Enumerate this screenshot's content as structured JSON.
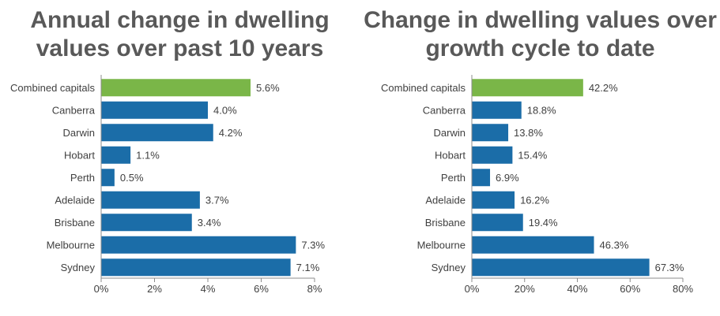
{
  "colors": {
    "combined": "#7ab648",
    "city": "#1b6da8",
    "axis": "#8c8c8c",
    "title": "#595959",
    "text": "#404040"
  },
  "chart_data": [
    {
      "type": "bar",
      "orientation": "horizontal",
      "title_lines": [
        "Annual change in dwelling",
        "values over past 10 years"
      ],
      "categories": [
        "Combined capitals",
        "Canberra",
        "Darwin",
        "Hobart",
        "Perth",
        "Adelaide",
        "Brisbane",
        "Melbourne",
        "Sydney"
      ],
      "values": [
        5.6,
        4.0,
        4.2,
        1.1,
        0.5,
        3.7,
        3.4,
        7.3,
        7.1
      ],
      "value_labels": [
        "5.6%",
        "4.0%",
        "4.2%",
        "1.1%",
        "0.5%",
        "3.7%",
        "3.4%",
        "7.3%",
        "7.1%"
      ],
      "highlight_category": "Combined capitals",
      "xlim": [
        0,
        8
      ],
      "xticks": [
        0,
        2,
        4,
        6,
        8
      ],
      "xtick_labels": [
        "0%",
        "2%",
        "4%",
        "6%",
        "8%"
      ],
      "grid": false,
      "legend": "none"
    },
    {
      "type": "bar",
      "orientation": "horizontal",
      "title_lines": [
        "Change in dwelling values over",
        "growth cycle to date"
      ],
      "categories": [
        "Combined capitals",
        "Canberra",
        "Darwin",
        "Hobart",
        "Perth",
        "Adelaide",
        "Brisbane",
        "Melbourne",
        "Sydney"
      ],
      "values": [
        42.2,
        18.8,
        13.8,
        15.4,
        6.9,
        16.2,
        19.4,
        46.3,
        67.3
      ],
      "value_labels": [
        "42.2%",
        "18.8%",
        "13.8%",
        "15.4%",
        "6.9%",
        "16.2%",
        "19.4%",
        "46.3%",
        "67.3%"
      ],
      "highlight_category": "Combined capitals",
      "xlim": [
        0,
        80
      ],
      "xticks": [
        0,
        20,
        40,
        60,
        80
      ],
      "xtick_labels": [
        "0%",
        "20%",
        "40%",
        "60%",
        "80%"
      ],
      "grid": false,
      "legend": "none"
    }
  ]
}
